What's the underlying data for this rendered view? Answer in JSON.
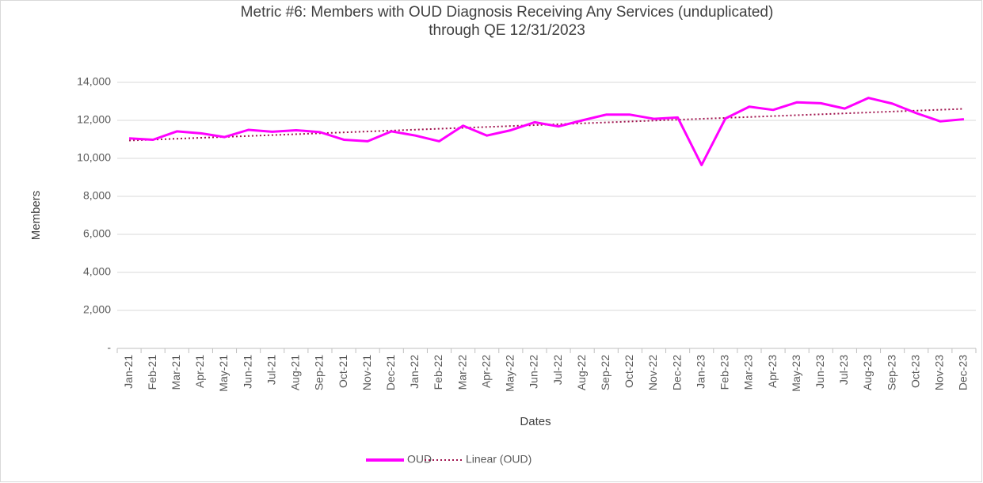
{
  "chart_data": {
    "type": "line",
    "title": [
      "Metric #6: Members with OUD Diagnosis Receiving Any Services (unduplicated)",
      "through QE 12/31/2023"
    ],
    "x_label": "Dates",
    "y_label": "Members",
    "categories": [
      "Jan-21",
      "Feb-21",
      "Mar-21",
      "Apr-21",
      "May-21",
      "Jun-21",
      "Jul-21",
      "Aug-21",
      "Sep-21",
      "Oct-21",
      "Nov-21",
      "Dec-21",
      "Jan-22",
      "Feb-22",
      "Mar-22",
      "Apr-22",
      "May-22",
      "Jun-22",
      "Jul-22",
      "Aug-22",
      "Sep-22",
      "Oct-22",
      "Nov-22",
      "Dec-22",
      "Jan-23",
      "Feb-23",
      "Mar-23",
      "Apr-23",
      "May-23",
      "Jun-23",
      "Jul-23",
      "Aug-23",
      "Sep-23",
      "Oct-23",
      "Nov-23",
      "Dec-23"
    ],
    "series": [
      {
        "name": "OUD",
        "color": "#ff00ff",
        "values": [
          11050,
          10980,
          11420,
          11320,
          11120,
          11500,
          11400,
          11480,
          11380,
          10980,
          10900,
          11420,
          11200,
          10900,
          11720,
          11200,
          11480,
          11900,
          11680,
          12000,
          12300,
          12300,
          12080,
          12150,
          9650,
          12100,
          12720,
          12550,
          12950,
          12900,
          12620,
          13180,
          12880,
          12380,
          11950,
          12060
        ]
      }
    ],
    "trendline": {
      "type": "linear",
      "name": "Linear (OUD)",
      "color": "#a0134e"
    },
    "ylim": [
      0,
      14000
    ],
    "yticks": [
      {
        "value": 0,
        "label": "-"
      },
      {
        "value": 2000,
        "label": "2,000"
      },
      {
        "value": 4000,
        "label": "4,000"
      },
      {
        "value": 6000,
        "label": "6,000"
      },
      {
        "value": 8000,
        "label": "8,000"
      },
      {
        "value": 10000,
        "label": "10,000"
      },
      {
        "value": 12000,
        "label": "12,000"
      },
      {
        "value": 14000,
        "label": "14,000"
      }
    ],
    "grid": true,
    "legend": "bottom"
  }
}
